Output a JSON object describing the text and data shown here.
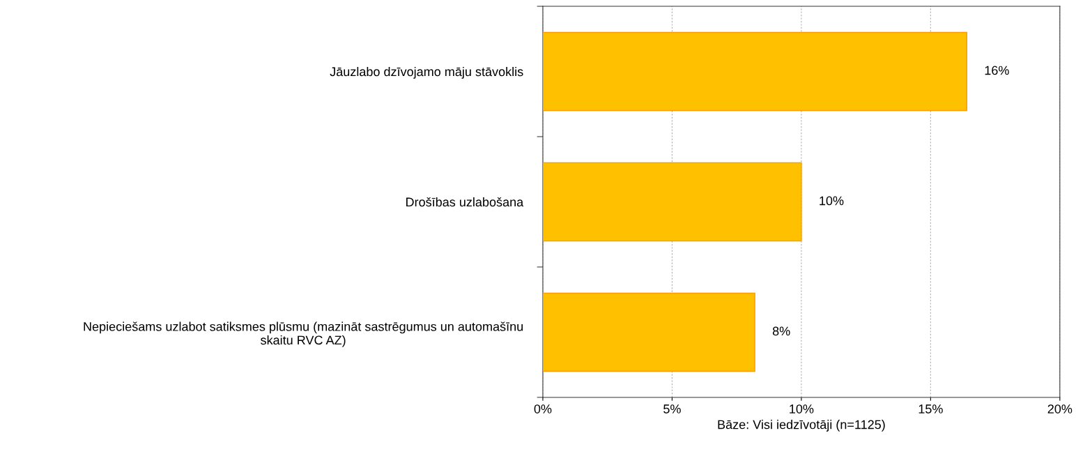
{
  "chart_data": {
    "type": "bar",
    "orientation": "horizontal",
    "categories": [
      "Jāuzlabo dzīvojamo māju stāvoklis",
      "Drošības uzlabošana",
      "Nepieciešams uzlabot satiksmes plūsmu (mazināt sastrēgumus un automašīnu\nskaitu RVC AZ)"
    ],
    "values": [
      16.4,
      10.0,
      8.2
    ],
    "value_labels": [
      "16%",
      "10%",
      "8%"
    ],
    "color": "#ffc000",
    "xlim": [
      0,
      20
    ],
    "xticks": [
      {
        "value": 0,
        "label": "0%"
      },
      {
        "value": 5,
        "label": "5%"
      },
      {
        "value": 10,
        "label": "10%"
      },
      {
        "value": 15,
        "label": "15%"
      },
      {
        "value": 20,
        "label": "20%"
      }
    ],
    "xlabel": "Bāze: Visi iedzīvotāji (n=1125)",
    "grid": "x",
    "legend": false
  }
}
